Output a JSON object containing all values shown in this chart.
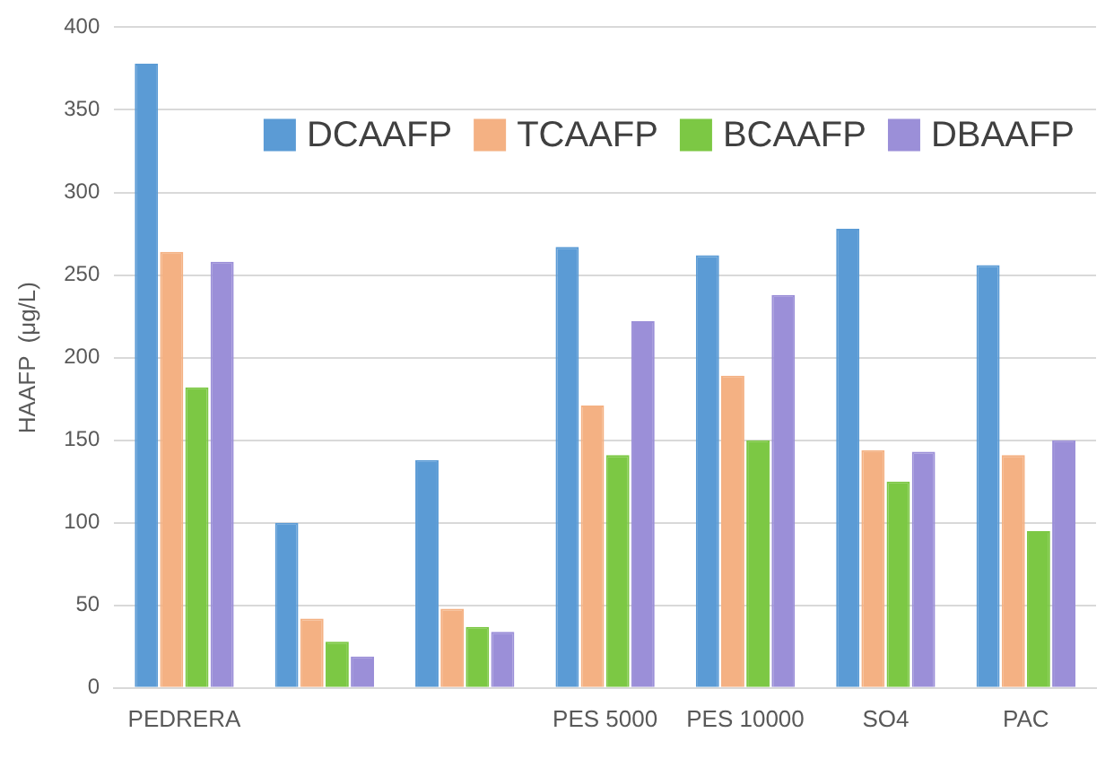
{
  "chart_data": {
    "type": "bar",
    "ylabel": "HAAFP  (μg/L)",
    "categories": [
      "PEDRERA",
      null,
      null,
      "PES 5000",
      "PES 10000",
      "SO4",
      "PAC"
    ],
    "series": [
      {
        "name": "DCAAFP",
        "color": "#5b9bd5",
        "values": [
          378,
          100,
          138,
          267,
          262,
          278,
          256
        ]
      },
      {
        "name": "TCAAFP",
        "color": "#f4b183",
        "values": [
          264,
          42,
          48,
          171,
          189,
          144,
          141
        ]
      },
      {
        "name": "BCAAFP",
        "color": "#7cc844",
        "values": [
          182,
          28,
          37,
          141,
          150,
          125,
          95
        ]
      },
      {
        "name": "DBAAFP",
        "color": "#9b8fd8",
        "values": [
          258,
          19,
          34,
          222,
          238,
          143,
          150
        ]
      }
    ],
    "ylim": [
      0,
      400
    ],
    "yticks": [
      0,
      50,
      100,
      150,
      200,
      250,
      300,
      350,
      400
    ],
    "grid": "y",
    "legend": "top right"
  }
}
